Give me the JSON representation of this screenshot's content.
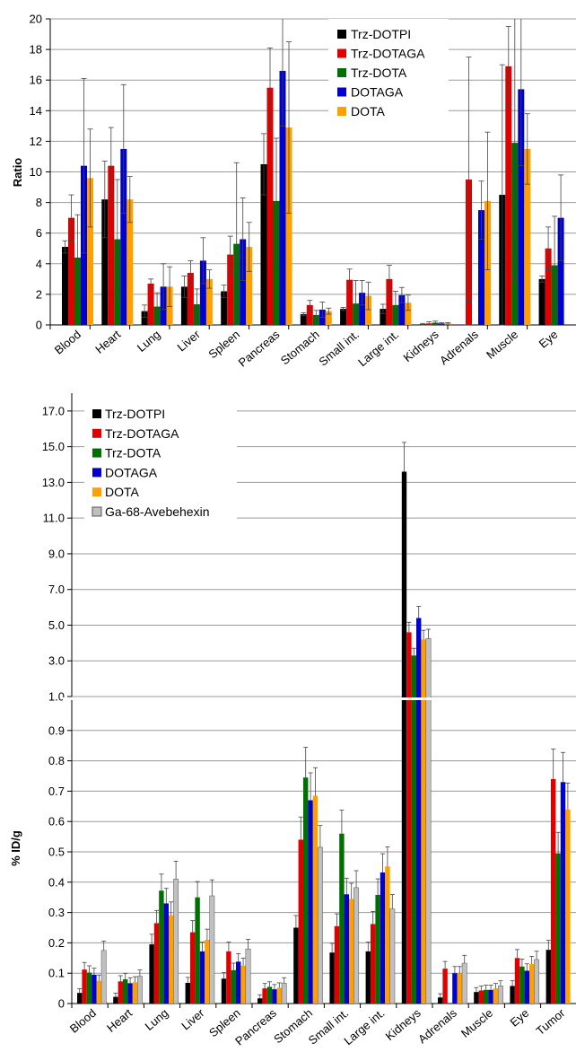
{
  "chart_data": [
    {
      "type": "bar",
      "ylabel": "Ratio",
      "ylim": [
        0,
        20
      ],
      "yticks": [
        0,
        2,
        4,
        6,
        8,
        10,
        12,
        14,
        16,
        18,
        20
      ],
      "grid": true,
      "legend_position": "top-center",
      "categories": [
        "Blood",
        "Heart",
        "Lung",
        "Liver",
        "Spleen",
        "Pancreas",
        "Stomach",
        "Small int.",
        "Large int.",
        "Kidneys",
        "Adrenals",
        "Muscle",
        "Eye"
      ],
      "series": [
        {
          "name": "Trz-DOTPI",
          "color": "#000000",
          "values": [
            5.1,
            8.2,
            0.9,
            2.5,
            2.2,
            10.5,
            0.7,
            1.05,
            1.05,
            0.05,
            0,
            8.5,
            3.0
          ],
          "errors": [
            0.4,
            2.5,
            0.4,
            0.7,
            0.4,
            2.0,
            0.1,
            0.1,
            0.3,
            0.05,
            0,
            8.5,
            0.2
          ]
        },
        {
          "name": "Trz-DOTAGA",
          "color": "#e00000",
          "values": [
            7.0,
            10.4,
            2.7,
            3.4,
            4.6,
            15.5,
            1.3,
            2.95,
            3.0,
            0.1,
            9.5,
            16.9,
            5.0
          ],
          "errors": [
            1.5,
            2.5,
            0.3,
            0.8,
            1.2,
            2.6,
            0.3,
            0.7,
            0.9,
            0.1,
            8.0,
            2.6,
            1.4
          ]
        },
        {
          "name": "Trz-DOTA",
          "color": "#007000",
          "values": [
            4.4,
            5.6,
            1.2,
            1.35,
            5.3,
            8.1,
            0.65,
            1.4,
            1.3,
            0.15,
            0,
            11.9,
            3.9
          ],
          "errors": [
            2.8,
            3.9,
            0.9,
            1.0,
            5.3,
            4.1,
            0.3,
            1.5,
            0.9,
            0.1,
            0,
            9.0,
            3.2
          ]
        },
        {
          "name": "DOTAGA",
          "color": "#0000d0",
          "values": [
            10.4,
            11.5,
            2.5,
            4.2,
            5.6,
            16.6,
            1.0,
            2.1,
            1.95,
            0.1,
            7.5,
            15.4,
            7.0
          ],
          "errors": [
            5.7,
            4.2,
            1.5,
            1.5,
            2.7,
            3.6,
            0.5,
            0.8,
            0.5,
            0.05,
            1.9,
            5.0,
            2.8
          ]
        },
        {
          "name": "DOTA",
          "color": "#ffa000",
          "values": [
            9.6,
            8.2,
            2.5,
            3.0,
            5.1,
            12.9,
            0.9,
            1.9,
            1.45,
            0.1,
            8.1,
            11.5,
            0
          ],
          "errors": [
            3.2,
            1.5,
            1.3,
            0.6,
            1.6,
            5.6,
            0.2,
            0.9,
            0.5,
            0.05,
            4.5,
            2.3,
            0
          ]
        }
      ],
      "labels": {
        "legend": [
          "Trz-DOTPI",
          "Trz-DOTAGA",
          "Trz-DOTA",
          "DOTAGA",
          "DOTA"
        ]
      }
    },
    {
      "type": "bar",
      "ylabel": "% ID/g",
      "axis_break": true,
      "ylim_lower": [
        0,
        1.0
      ],
      "yticks_lower": [
        0,
        0.1,
        0.2,
        0.3,
        0.4,
        0.5,
        0.6,
        0.7,
        0.8,
        0.9
      ],
      "ylim_upper": [
        1.0,
        18.0
      ],
      "yticks_upper": [
        1.0,
        3.0,
        5.0,
        7.0,
        9.0,
        11.0,
        13.0,
        15.0,
        17.0
      ],
      "grid": true,
      "legend_position": "top-left",
      "categories": [
        "Blood",
        "Heart",
        "Lung",
        "Liver",
        "Spleen",
        "Pancreas",
        "Stomach",
        "Small int.",
        "Large int.",
        "Kidneys",
        "Adrenals",
        "Muscle",
        "Eye",
        "Tumor"
      ],
      "series": [
        {
          "name": "Trz-DOTPI",
          "color": "#000000",
          "values": [
            0.035,
            0.022,
            0.195,
            0.068,
            0.082,
            0.017,
            0.25,
            0.168,
            0.172,
            13.6,
            0.02,
            0.038,
            0.058,
            0.177
          ],
          "errors": [
            0.005,
            0.005,
            0.06,
            0.01,
            0.015,
            0.005,
            0.015,
            0.02,
            0.015,
            4.0,
            0.03,
            0.005,
            0.01,
            0.02
          ]
        },
        {
          "name": "Trz-DOTAGA",
          "color": "#e00000",
          "values": [
            0.112,
            0.073,
            0.265,
            0.235,
            0.172,
            0.05,
            0.54,
            0.255,
            0.262,
            4.6,
            0.115,
            0.043,
            0.15,
            0.74
          ],
          "errors": [
            0.04,
            0.02,
            0.04,
            0.09,
            0.06,
            0.01,
            0.05,
            0.07,
            0.07,
            1.2,
            0.06,
            0.01,
            0.03,
            0.15
          ]
        },
        {
          "name": "Trz-DOTA",
          "color": "#007000",
          "values": [
            0.102,
            0.08,
            0.372,
            0.35,
            0.11,
            0.055,
            0.745,
            0.56,
            0.358,
            3.3,
            0,
            0.045,
            0.122,
            0.495
          ]
        },
        {
          "name": "DOTAGA",
          "color": "#0000d0",
          "values": [
            0.095,
            0.067,
            0.33,
            0.172,
            0.138,
            0.047,
            0.67,
            0.36,
            0.432,
            5.4,
            0.1,
            0.045,
            0.108,
            0.73
          ]
        },
        {
          "name": "DOTA",
          "color": "#ffa000",
          "values": [
            0.075,
            0.07,
            0.29,
            0.21,
            0.125,
            0.052,
            0.685,
            0.345,
            0.452,
            4.2,
            0.1,
            0.05,
            0.13,
            0.64
          ]
        },
        {
          "name": "Ga-68-Avebehexin",
          "color": "#c0c0c0",
          "values": [
            0.175,
            0.09,
            0.41,
            0.355,
            0.18,
            0.067,
            0.515,
            0.382,
            0.312,
            4.25,
            0.133,
            0.058,
            0.145,
            0
          ]
        }
      ],
      "errors_note": "",
      "labels": {
        "legend": [
          "Trz-DOTPI",
          "Trz-DOTAGA",
          "Trz-DOTA",
          "DOTAGA",
          "DOTA",
          "Ga-68-Avebehexin"
        ]
      }
    }
  ]
}
